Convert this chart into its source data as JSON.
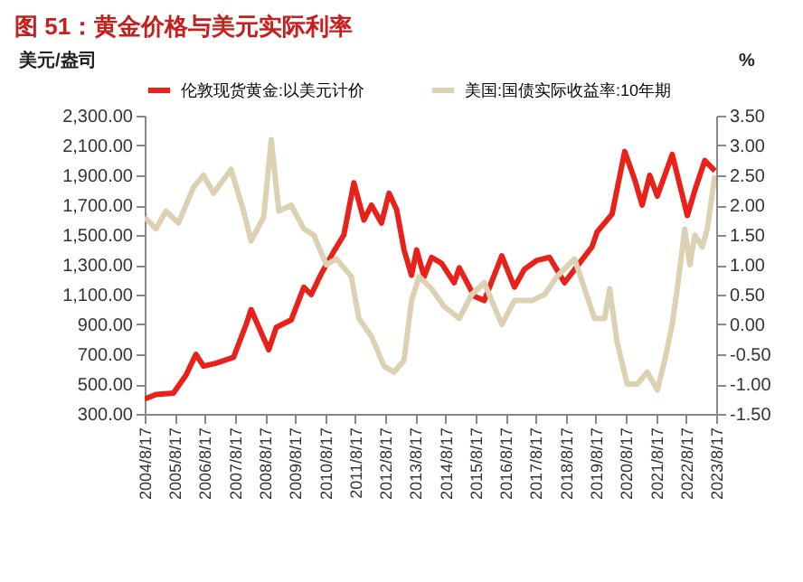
{
  "chart_data": {
    "type": "line",
    "title": "图 51：黄金价格与美元实际利率",
    "ylabel": "美元/盎司",
    "y2label": "%",
    "legend": "top",
    "xlim": [
      "2004-08-17",
      "2023-08-17"
    ],
    "xticks": [
      {
        "value": "2004-08-17",
        "label": "2004/8/17"
      },
      {
        "value": "2005-08-17",
        "label": "2005/8/17"
      },
      {
        "value": "2006-08-17",
        "label": "2006/8/17"
      },
      {
        "value": "2007-08-17",
        "label": "2007/8/17"
      },
      {
        "value": "2008-08-17",
        "label": "2008/8/17"
      },
      {
        "value": "2009-08-17",
        "label": "2009/8/17"
      },
      {
        "value": "2010-08-17",
        "label": "2010/8/17"
      },
      {
        "value": "2011-08-17",
        "label": "2011/8/17"
      },
      {
        "value": "2012-08-17",
        "label": "2012/8/17"
      },
      {
        "value": "2013-08-17",
        "label": "2013/8/17"
      },
      {
        "value": "2014-08-17",
        "label": "2014/8/17"
      },
      {
        "value": "2015-08-17",
        "label": "2015/8/17"
      },
      {
        "value": "2016-08-17",
        "label": "2016/8/17"
      },
      {
        "value": "2017-08-17",
        "label": "2017/8/17"
      },
      {
        "value": "2018-08-17",
        "label": "2018/8/17"
      },
      {
        "value": "2019-08-17",
        "label": "2019/8/17"
      },
      {
        "value": "2020-08-17",
        "label": "2020/8/17"
      },
      {
        "value": "2021-08-17",
        "label": "2021/8/17"
      },
      {
        "value": "2022-08-17",
        "label": "2022/8/17"
      },
      {
        "value": "2023-08-17",
        "label": "2023/8/17"
      }
    ],
    "ylim": [
      300,
      2300
    ],
    "yticks": [
      {
        "value": 300,
        "label": "300.00"
      },
      {
        "value": 500,
        "label": "500.00"
      },
      {
        "value": 700,
        "label": "700.00"
      },
      {
        "value": 900,
        "label": "900.00"
      },
      {
        "value": 1100,
        "label": "1,100.00"
      },
      {
        "value": 1300,
        "label": "1,300.00"
      },
      {
        "value": 1500,
        "label": "1,500.00"
      },
      {
        "value": 1700,
        "label": "1,700.00"
      },
      {
        "value": 1900,
        "label": "1,900.00"
      },
      {
        "value": 2100,
        "label": "2,100.00"
      },
      {
        "value": 2300,
        "label": "2,300.00"
      }
    ],
    "y2lim": [
      -1.5,
      3.5
    ],
    "y2ticks": [
      {
        "value": -1.5,
        "label": "-1.50"
      },
      {
        "value": -1,
        "label": "-1.00"
      },
      {
        "value": -0.5,
        "label": "-0.50"
      },
      {
        "value": 0,
        "label": "0.00"
      },
      {
        "value": 0.5,
        "label": "0.50"
      },
      {
        "value": 1,
        "label": "1.00"
      },
      {
        "value": 1.5,
        "label": "1.50"
      },
      {
        "value": 2,
        "label": "2.00"
      },
      {
        "value": 2.5,
        "label": "2.50"
      },
      {
        "value": 3,
        "label": "3.00"
      },
      {
        "value": 3.5,
        "label": "3.50"
      }
    ],
    "series": [
      {
        "name": "伦敦现货黄金:以美元计价",
        "color": "#e8221b",
        "x": [
          "2004-08-17",
          "2005-01",
          "2005-08",
          "2006-01",
          "2006-05",
          "2006-08",
          "2007-01",
          "2007-08",
          "2008-01",
          "2008-03",
          "2008-10",
          "2009-01",
          "2009-07",
          "2009-12",
          "2010-03",
          "2010-07",
          "2010-12",
          "2011-04",
          "2011-08",
          "2011-12",
          "2012-03",
          "2012-07",
          "2012-10",
          "2013-01",
          "2013-04",
          "2013-07",
          "2013-09",
          "2013-12",
          "2014-03",
          "2014-07",
          "2014-12",
          "2015-02",
          "2015-08",
          "2015-12",
          "2016-07",
          "2016-12",
          "2017-04",
          "2017-09",
          "2018-02",
          "2018-08",
          "2019-01",
          "2019-07",
          "2019-09",
          "2020-03",
          "2020-08",
          "2020-12",
          "2021-03",
          "2021-06",
          "2021-09",
          "2022-03",
          "2022-09",
          "2022-12",
          "2023-04",
          "2023-08"
        ],
        "values": [
          400,
          430,
          440,
          560,
          700,
          620,
          640,
          680,
          900,
          1000,
          730,
          880,
          930,
          1150,
          1100,
          1240,
          1390,
          1500,
          1850,
          1600,
          1700,
          1580,
          1780,
          1670,
          1400,
          1230,
          1400,
          1220,
          1350,
          1310,
          1180,
          1280,
          1090,
          1060,
          1360,
          1150,
          1270,
          1330,
          1350,
          1180,
          1290,
          1420,
          1520,
          1640,
          2060,
          1870,
          1700,
          1900,
          1760,
          2040,
          1630,
          1800,
          2000,
          1930
        ]
      },
      {
        "name": "美国:国债实际收益率:10年期",
        "color": "#ddd1b4",
        "axis": "y2",
        "x": [
          "2004-08-17",
          "2005-01",
          "2005-05",
          "2005-10",
          "2006-04",
          "2006-08",
          "2006-12",
          "2007-07",
          "2007-12",
          "2008-03",
          "2008-08",
          "2008-11",
          "2009-02",
          "2009-07",
          "2009-12",
          "2010-04",
          "2010-09",
          "2011-01",
          "2011-07",
          "2011-10",
          "2012-03",
          "2012-08",
          "2012-12",
          "2013-04",
          "2013-07",
          "2013-10",
          "2014-03",
          "2014-08",
          "2015-02",
          "2015-07",
          "2015-12",
          "2016-07",
          "2016-12",
          "2017-07",
          "2017-12",
          "2018-05",
          "2018-12",
          "2019-04",
          "2019-08",
          "2019-12",
          "2020-02",
          "2020-05",
          "2020-09",
          "2021-01",
          "2021-05",
          "2021-09",
          "2021-12",
          "2022-03",
          "2022-05",
          "2022-08",
          "2022-10",
          "2022-12",
          "2023-03",
          "2023-05",
          "2023-08"
        ],
        "values": [
          1.8,
          1.6,
          1.9,
          1.7,
          2.3,
          2.5,
          2.2,
          2.6,
          1.9,
          1.4,
          1.8,
          3.1,
          1.9,
          2.0,
          1.6,
          1.5,
          1.0,
          1.1,
          0.8,
          0.1,
          -0.2,
          -0.7,
          -0.8,
          -0.6,
          0.4,
          0.8,
          0.6,
          0.3,
          0.1,
          0.5,
          0.7,
          0.0,
          0.4,
          0.4,
          0.5,
          0.8,
          1.1,
          0.6,
          0.1,
          0.1,
          0.6,
          -0.3,
          -1.0,
          -1.0,
          -0.8,
          -1.1,
          -0.6,
          0.0,
          0.6,
          1.6,
          1.0,
          1.5,
          1.3,
          1.6,
          2.5
        ]
      }
    ]
  }
}
